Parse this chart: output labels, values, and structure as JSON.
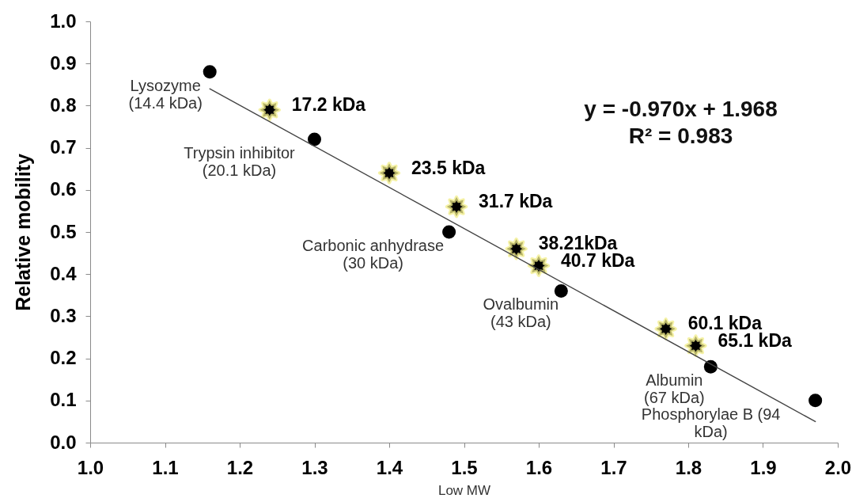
{
  "chart_data": {
    "type": "scatter",
    "xlabel": "Low MW",
    "ylabel": "Relative mobility",
    "xlim": [
      1.0,
      2.0
    ],
    "ylim": [
      0.0,
      1.0
    ],
    "xticks": [
      {
        "value": 1.0,
        "label": "1.0"
      },
      1.1,
      1.2,
      1.3,
      1.4,
      1.5,
      1.6,
      1.7,
      1.8,
      1.9,
      {
        "value": 2.0,
        "label": "2.0"
      }
    ],
    "yticks": [
      {
        "value": 0.0,
        "label": "0.0"
      },
      0.1,
      0.2,
      0.3,
      0.4,
      0.5,
      0.6,
      0.7,
      0.8,
      0.9,
      {
        "value": 1.0,
        "label": "1.0"
      }
    ],
    "series": [
      {
        "marker": "circle",
        "color": "#000000",
        "x": [
          1.16,
          1.3,
          1.48,
          1.63,
          1.83,
          1.97
        ],
        "values": [
          0.88,
          0.72,
          0.5,
          0.36,
          0.18,
          0.1
        ]
      },
      {
        "marker": "star",
        "color": "#000000",
        "x": [
          1.24,
          1.4,
          1.49,
          1.57,
          1.6,
          1.77,
          1.81
        ],
        "values": [
          0.79,
          0.64,
          0.56,
          0.46,
          0.42,
          0.27,
          0.23
        ]
      },
      {
        "type": "line",
        "color": "#444444",
        "line_style": "solid",
        "x": [
          1.16,
          1.97
        ],
        "values": [
          0.84,
          0.05
        ]
      }
    ],
    "annotations": [
      {
        "text": "Lysozyme\n(14.4 kDa)",
        "x": 1.16,
        "y": 0.88
      },
      {
        "text": "Trypsin inhibitor\n(20.1 kDa)",
        "x": 1.3,
        "y": 0.72
      },
      {
        "text": "Carbonic anhydrase\n(30 kDa)",
        "x": 1.48,
        "y": 0.5
      },
      {
        "text": "Ovalbumin\n(43 kDa)",
        "x": 1.63,
        "y": 0.36
      },
      {
        "text": "Albumin\n(67 kDa)",
        "x": 1.83,
        "y": 0.18
      },
      {
        "text": "Phosphorylae B (94\nkDa)",
        "x": 1.97,
        "y": 0.1
      },
      {
        "text": "17.2 kDa",
        "x": 1.24,
        "y": 0.79
      },
      {
        "text": "23.5 kDa",
        "x": 1.4,
        "y": 0.64
      },
      {
        "text": "31.7 kDa",
        "x": 1.49,
        "y": 0.56
      },
      {
        "text": "38.21kDa",
        "x": 1.57,
        "y": 0.46
      },
      {
        "text": "40.7 kDa",
        "x": 1.6,
        "y": 0.42
      },
      {
        "text": "60.1 kDa",
        "x": 1.77,
        "y": 0.27
      },
      {
        "text": "65.1 kDa",
        "x": 1.81,
        "y": 0.23
      },
      "y = -0.970x + 1.968\nR² = 0.983"
    ]
  }
}
